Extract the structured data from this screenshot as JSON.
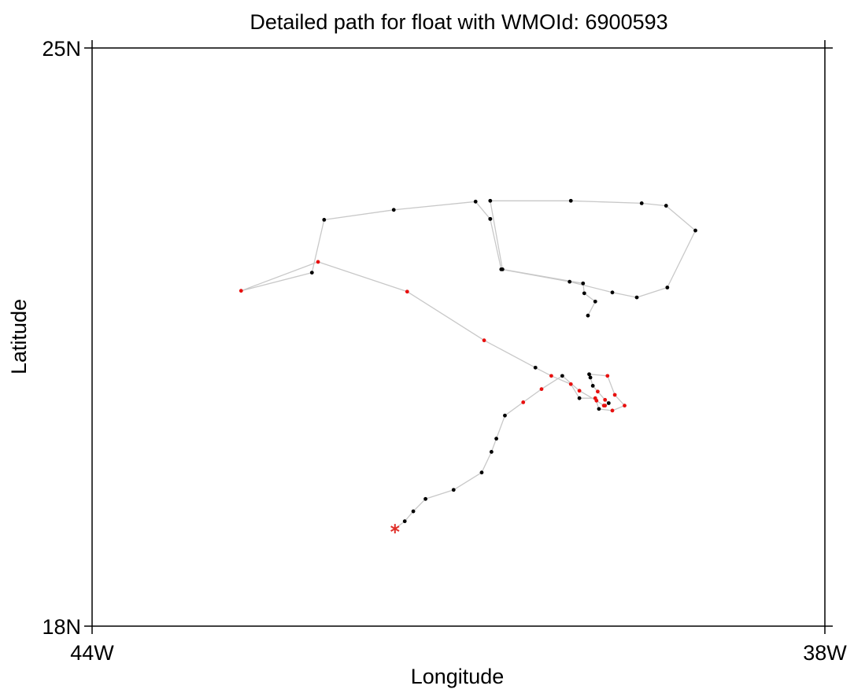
{
  "colors": {
    "track": "#c8c8c8",
    "point": "#000000",
    "flagged_point": "#e8100f",
    "start_marker": "#e0302a",
    "frame": "#000000",
    "background": "#ffffff"
  },
  "chart_data": {
    "type": "scatter",
    "title": "Detailed path for float with WMOId: 6900593",
    "xlabel": "Longitude",
    "ylabel": "Latitude",
    "xlim": [
      -44,
      -38
    ],
    "ylim": [
      18,
      25
    ],
    "x_ticks": [
      {
        "value": -44,
        "label": "44W"
      },
      {
        "value": -38,
        "label": "38W"
      }
    ],
    "y_ticks": [
      {
        "value": 18,
        "label": "18N"
      },
      {
        "value": 25,
        "label": "25N"
      }
    ],
    "grid": false,
    "legend": "none",
    "start_position": {
      "lon": -41.52,
      "lat": 19.18,
      "marker": "asterisk"
    },
    "series": [
      {
        "kind": "track",
        "x": [
          -41.52,
          -41.44,
          -41.37,
          -41.27,
          -41.04,
          -40.81,
          -40.73,
          -40.69,
          -40.62,
          -40.47,
          -40.32,
          -40.15,
          -40.01,
          -39.87,
          -39.81,
          -39.8,
          -39.77,
          -39.8,
          -39.86,
          -39.9,
          -39.92,
          -39.93,
          -39.78,
          -39.72,
          -39.64,
          -39.74,
          -39.85,
          -39.88,
          -40.01,
          -40.08,
          -40.24,
          -40.37,
          -40.79,
          -41.42,
          -42.15,
          -42.78,
          -42.2,
          -42.1,
          -41.53,
          -40.86,
          -40.74,
          -40.74,
          -40.65,
          -40.09,
          -39.74,
          -39.54,
          -39.29,
          -39.06,
          -39.3,
          -39.5,
          -40.08,
          -40.74,
          -40.64,
          -39.98,
          -39.97,
          -39.88,
          -39.94
        ],
        "y": [
          19.18,
          19.27,
          19.39,
          19.54,
          19.65,
          19.86,
          20.11,
          20.27,
          20.55,
          20.71,
          20.87,
          21.03,
          20.85,
          20.73,
          20.67,
          20.67,
          20.7,
          20.74,
          20.84,
          20.91,
          21.01,
          21.05,
          21.03,
          20.8,
          20.67,
          20.61,
          20.63,
          20.76,
          20.76,
          20.93,
          21.03,
          21.13,
          21.46,
          22.05,
          22.41,
          22.06,
          22.28,
          22.92,
          23.04,
          23.14,
          22.93,
          22.93,
          22.32,
          22.17,
          22.04,
          21.98,
          22.1,
          22.79,
          23.09,
          23.12,
          23.15,
          23.15,
          22.32,
          22.15,
          22.03,
          21.93,
          21.76
        ],
        "flagged": [
          false,
          false,
          false,
          false,
          false,
          false,
          false,
          false,
          false,
          true,
          true,
          false,
          true,
          true,
          true,
          true,
          false,
          true,
          true,
          false,
          false,
          false,
          true,
          true,
          true,
          true,
          false,
          true,
          false,
          true,
          true,
          false,
          true,
          true,
          true,
          true,
          false,
          false,
          false,
          false,
          false,
          false,
          false,
          false,
          false,
          false,
          false,
          false,
          false,
          false,
          false,
          false,
          false,
          false,
          false,
          false,
          false
        ]
      }
    ]
  }
}
